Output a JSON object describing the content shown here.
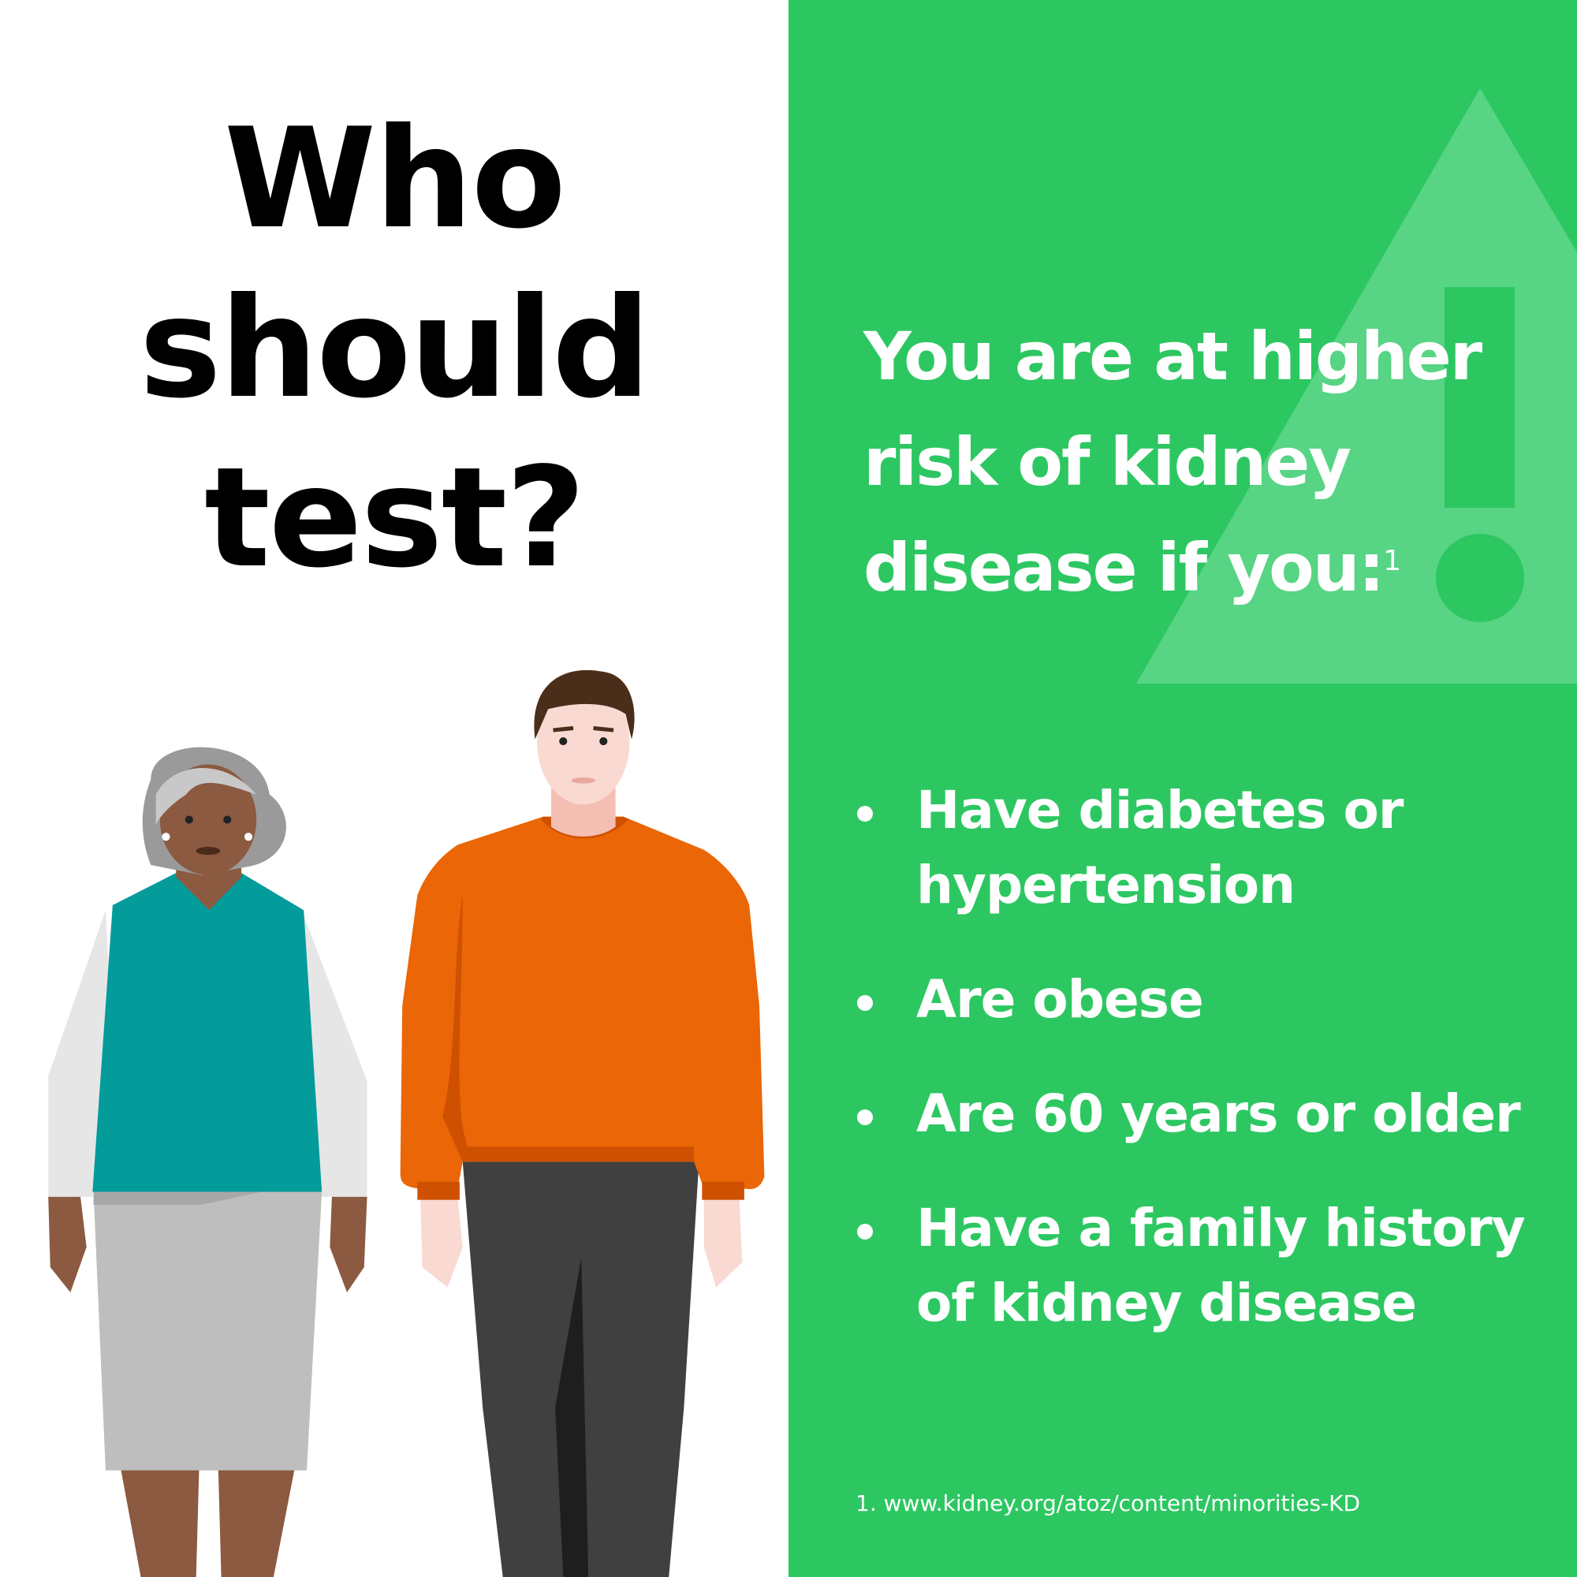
{
  "left": {
    "title_lines": [
      "Who",
      "should",
      "test?"
    ]
  },
  "right": {
    "heading": "You are at higher risk of  kidney disease if you:",
    "footnote_marker": "1",
    "bullets": [
      "Have diabetes or hypertension",
      "Are obese",
      "Are 60 years or older",
      "Have a family history of kidney disease"
    ],
    "footnote": "1. www.kidney.org/atoz/content/minorities-KD"
  },
  "colors": {
    "green": "#2DC762",
    "triangle": "#57D484",
    "sweater": "#EA6606",
    "vest": "#049B9B"
  },
  "icons": [
    "warning-triangle-icon"
  ]
}
